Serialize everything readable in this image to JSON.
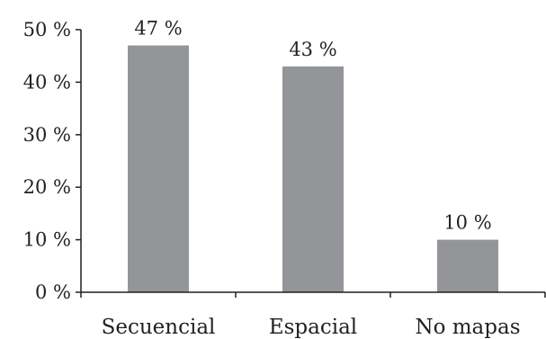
{
  "chart_data": {
    "type": "bar",
    "categories": [
      "Secuencial",
      "Espacial",
      "No mapas"
    ],
    "values": [
      47,
      43,
      10
    ],
    "data_labels": [
      "47 %",
      "43 %",
      "10 %"
    ],
    "ylim": [
      0,
      50
    ],
    "yticks": [
      0,
      10,
      20,
      30,
      40,
      50
    ],
    "ytick_labels": [
      "0 %",
      "10 %",
      "20 %",
      "30 %",
      "40 %",
      "50 %"
    ],
    "title": "",
    "xlabel": "",
    "ylabel": "",
    "grid": false,
    "legend": "none",
    "bar_color": "#939598",
    "axis_color": "#231f20"
  }
}
